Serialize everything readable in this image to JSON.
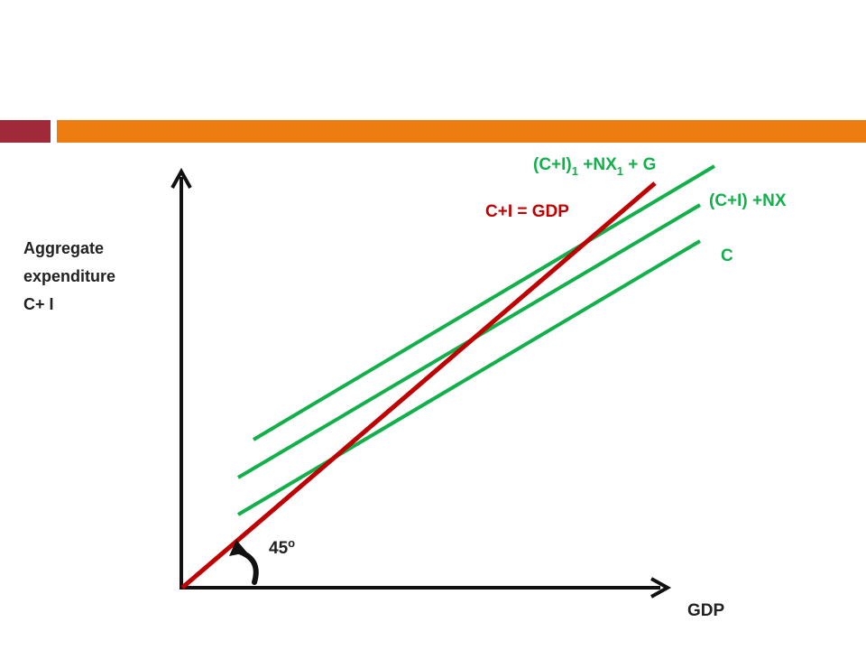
{
  "colors": {
    "bar_left": "#A0293A",
    "bar_right": "#ED7D10",
    "axis": "#111111",
    "line_45": "#C00000",
    "line_green": "#12B04B",
    "text_dark": "#222222"
  },
  "axes": {
    "y_label_lines": [
      "Aggregate",
      "expenditure",
      "C+ I"
    ],
    "x_label": "GDP"
  },
  "curves": {
    "line_45_label": "C+I = GDP",
    "g_base": "(C+I)",
    "g_sub1": "1",
    "g_mid": " +NX",
    "g_sub2": "1",
    "g_tail": " + G",
    "nx_label": "(C+I) +NX",
    "c_label": "C"
  },
  "angle": {
    "label": "45",
    "degree": "o",
    "icon": "curved-arrow-icon"
  }
}
